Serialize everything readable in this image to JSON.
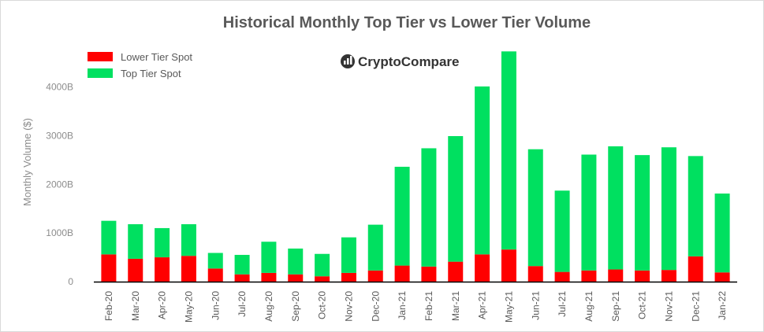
{
  "chart_data": {
    "type": "bar",
    "stacked": true,
    "title": "Historical Monthly Top Tier vs Lower Tier Volume",
    "ylabel": "Monthly Volume ($)",
    "xlabel": "",
    "ylim": [
      0,
      4800
    ],
    "yticks": [
      0,
      1000,
      2000,
      3000,
      4000
    ],
    "ytick_labels": [
      "0",
      "1000B",
      "2000B",
      "3000B",
      "4000B"
    ],
    "legend_position": "top-left",
    "categories": [
      "Feb-20",
      "Mar-20",
      "Apr-20",
      "May-20",
      "Jun-20",
      "Jul-20",
      "Aug-20",
      "Sep-20",
      "Oct-20",
      "Nov-20",
      "Dec-20",
      "Jan-21",
      "Feb-21",
      "Mar-21",
      "Apr-21",
      "May-21",
      "Jun-21",
      "Jul-21",
      "Aug-21",
      "Sep-21",
      "Oct-21",
      "Nov-21",
      "Dec-21",
      "Jan-22"
    ],
    "series": [
      {
        "name": "Lower Tier Spot",
        "color": "#ff0000",
        "values": [
          560,
          470,
          500,
          530,
          270,
          150,
          180,
          150,
          110,
          180,
          230,
          330,
          310,
          410,
          560,
          660,
          320,
          200,
          230,
          250,
          230,
          240,
          520,
          190
        ]
      },
      {
        "name": "Top Tier Spot",
        "color": "#00e060",
        "values": [
          690,
          710,
          600,
          650,
          320,
          400,
          640,
          530,
          460,
          730,
          940,
          2030,
          2430,
          2580,
          3450,
          4070,
          2400,
          1670,
          2380,
          2530,
          2370,
          2520,
          2060,
          1620
        ]
      }
    ]
  },
  "watermark": {
    "icon": "bar-chart-icon",
    "brand_text": "CryptoCompare"
  }
}
